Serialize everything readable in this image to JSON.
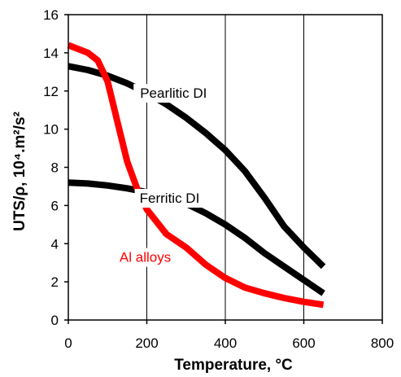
{
  "chart_data": {
    "type": "line",
    "xlabel": "Temperature, °C",
    "ylabel": "UTS/ρ, 10⁴.m²/s²",
    "xlim": [
      0,
      800
    ],
    "ylim": [
      0,
      16
    ],
    "xticks": [
      0,
      200,
      400,
      600,
      800
    ],
    "yticks": [
      0,
      2,
      4,
      6,
      8,
      10,
      12,
      14,
      16
    ],
    "xtick_labels": [
      "0",
      "200",
      "400",
      "600",
      "800"
    ],
    "ytick_labels": [
      "0",
      "2",
      "4",
      "6",
      "8",
      "10",
      "12",
      "14",
      "16"
    ],
    "grid": "vertical",
    "legend": "none",
    "series": [
      {
        "name": "Pearlitic DI",
        "color": "#000000",
        "x": [
          0,
          50,
          100,
          150,
          200,
          250,
          300,
          350,
          400,
          450,
          500,
          550,
          600,
          650
        ],
        "y": [
          13.3,
          13.1,
          12.8,
          12.4,
          11.9,
          11.3,
          10.6,
          9.8,
          8.9,
          7.8,
          6.4,
          4.9,
          3.8,
          2.8
        ]
      },
      {
        "name": "Ferritic DI",
        "color": "#000000",
        "x": [
          0,
          50,
          100,
          150,
          200,
          250,
          300,
          350,
          400,
          450,
          500,
          550,
          600,
          650
        ],
        "y": [
          7.2,
          7.15,
          7.05,
          6.9,
          6.7,
          6.45,
          6.1,
          5.6,
          5.0,
          4.3,
          3.5,
          2.8,
          2.1,
          1.4
        ]
      },
      {
        "name": "Al alloys",
        "color": "#ff0000",
        "x": [
          0,
          25,
          50,
          75,
          100,
          125,
          150,
          175,
          200,
          250,
          300,
          350,
          400,
          450,
          500,
          550,
          600,
          650
        ],
        "y": [
          14.4,
          14.2,
          14.0,
          13.6,
          12.5,
          10.4,
          8.3,
          6.9,
          5.8,
          4.5,
          3.8,
          2.9,
          2.2,
          1.7,
          1.4,
          1.15,
          0.95,
          0.8
        ]
      }
    ]
  }
}
